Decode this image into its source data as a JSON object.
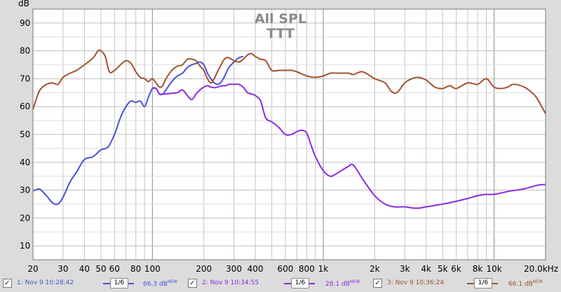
{
  "chart_data": {
    "type": "line",
    "title": "All SPL",
    "subtitle": "TTT",
    "ylabel": "dB",
    "xscale": "log",
    "xlim": [
      20,
      20000
    ],
    "ylim": [
      5,
      95
    ],
    "y_ticks": [
      10,
      20,
      30,
      40,
      50,
      60,
      70,
      80,
      90
    ],
    "x_ticks": [
      {
        "v": 20,
        "label": "20"
      },
      {
        "v": 30,
        "label": "30"
      },
      {
        "v": 40,
        "label": "40"
      },
      {
        "v": 50,
        "label": "50"
      },
      {
        "v": 60,
        "label": "60"
      },
      {
        "v": 80,
        "label": "80"
      },
      {
        "v": 100,
        "label": "100"
      },
      {
        "v": 200,
        "label": "200"
      },
      {
        "v": 300,
        "label": "300"
      },
      {
        "v": 400,
        "label": "400"
      },
      {
        "v": 600,
        "label": "600"
      },
      {
        "v": 800,
        "label": "800"
      },
      {
        "v": 1000,
        "label": "1k"
      },
      {
        "v": 2000,
        "label": "2k"
      },
      {
        "v": 3000,
        "label": "3k"
      },
      {
        "v": 4000,
        "label": "4k"
      },
      {
        "v": 5000,
        "label": "5k"
      },
      {
        "v": 6000,
        "label": "6k"
      },
      {
        "v": 8000,
        "label": "8k"
      },
      {
        "v": 10000,
        "label": "10k"
      },
      {
        "v": 20000,
        "label": "20.0kHz"
      }
    ],
    "grid": true,
    "series": [
      {
        "name": "1: Nov 9 10:28:42",
        "color": "#4a52d8",
        "smoothing": "1/6",
        "value_label": "66.3 dB",
        "x": [
          20,
          21,
          22,
          24,
          26,
          28,
          30,
          33,
          36,
          40,
          45,
          50,
          55,
          60,
          65,
          70,
          75,
          80,
          85,
          90,
          95,
          100,
          105,
          110,
          115,
          120,
          130,
          140,
          150,
          160,
          170,
          180,
          190,
          200,
          210,
          220,
          230,
          240,
          250,
          260,
          270,
          280,
          300,
          320,
          340
        ],
        "y": [
          29.8,
          30.2,
          30.3,
          28,
          25.5,
          25,
          27.5,
          33,
          36.5,
          41,
          42,
          44.5,
          45.5,
          50,
          56,
          60,
          62,
          61.5,
          62,
          60,
          63.5,
          66.5,
          66.5,
          64.5,
          64.5,
          66,
          69,
          71,
          72,
          74,
          75,
          75.5,
          76,
          75,
          72,
          70,
          68.5,
          68,
          68.5,
          70,
          72,
          74,
          76,
          77.5,
          78
        ]
      },
      {
        "name": "2: Nov 9 10:34:55",
        "color": "#8a2be2",
        "smoothing": "1/6",
        "value_label": "28.1 dB",
        "x": [
          100,
          105,
          110,
          115,
          120,
          130,
          140,
          150,
          160,
          170,
          180,
          190,
          200,
          210,
          220,
          230,
          240,
          250,
          260,
          270,
          280,
          300,
          320,
          340,
          360,
          380,
          400,
          430,
          460,
          500,
          550,
          600,
          650,
          700,
          750,
          800,
          850,
          900,
          1000,
          1100,
          1200,
          1400,
          1500,
          1700,
          2000,
          2300,
          2600,
          3000,
          3500,
          4000,
          5000,
          6000,
          7000,
          8000,
          9000,
          10000,
          12000,
          15000,
          18000,
          20000
        ],
        "y": [
          66.5,
          66.5,
          64.5,
          64.5,
          64.5,
          64.8,
          65,
          66,
          64,
          62.5,
          64.5,
          66,
          67,
          67.5,
          67,
          66.8,
          67,
          67.3,
          67.5,
          67.5,
          68,
          68,
          68,
          67,
          65,
          64.5,
          64,
          62,
          56,
          54.5,
          52.5,
          50,
          50,
          51,
          51.5,
          50.5,
          46,
          42,
          37,
          35,
          36,
          38.5,
          39,
          34,
          28,
          25,
          24,
          24,
          23.5,
          24,
          25,
          26,
          27,
          28,
          28.5,
          28.5,
          29.5,
          30.5,
          31.8,
          32
        ]
      },
      {
        "name": "3: Nov 9 10:36:24",
        "color": "#a0522d",
        "smoothing": "1/6",
        "value_label": "66.1 dB",
        "x": [
          20,
          21,
          22,
          24,
          26,
          28,
          30,
          33,
          36,
          40,
          45,
          48,
          50,
          53,
          56,
          60,
          65,
          70,
          75,
          80,
          85,
          90,
          95,
          100,
          105,
          110,
          115,
          120,
          130,
          140,
          150,
          160,
          170,
          180,
          190,
          200,
          210,
          220,
          230,
          240,
          250,
          260,
          270,
          280,
          300,
          320,
          340,
          360,
          380,
          400,
          430,
          460,
          500,
          550,
          600,
          650,
          700,
          800,
          900,
          1000,
          1100,
          1200,
          1400,
          1500,
          1700,
          2000,
          2300,
          2500,
          2700,
          3000,
          3300,
          3600,
          4000,
          4500,
          5000,
          5500,
          6000,
          7000,
          8000,
          9000,
          10000,
          11000,
          12000,
          13000,
          15000,
          17000,
          18000,
          20000
        ],
        "y": [
          59,
          63,
          66,
          68,
          68.5,
          68,
          70.5,
          72,
          73,
          75,
          77.5,
          80,
          80,
          78,
          72.5,
          73,
          75,
          76.5,
          75.5,
          72.5,
          70.5,
          70,
          69,
          70,
          68.5,
          67,
          67.5,
          70,
          73,
          74.5,
          75,
          77,
          77,
          76.5,
          74.5,
          73,
          70,
          68.5,
          70,
          72.5,
          74.5,
          76.5,
          77.5,
          77.5,
          76.5,
          76,
          77,
          78.5,
          79,
          78,
          77,
          76.5,
          73,
          73,
          73,
          73,
          72.5,
          71,
          70.5,
          71,
          72,
          72,
          72,
          71.5,
          72.5,
          70,
          68.5,
          65.5,
          65,
          68.5,
          70,
          70.5,
          69.5,
          67,
          66.5,
          67.5,
          66.5,
          68.5,
          68,
          70,
          67,
          66.5,
          67,
          68,
          67,
          64.5,
          62.5,
          57.5
        ]
      }
    ]
  },
  "legend": [
    {
      "label": "1: Nov 9 10:28:42",
      "smoothing": "1/6",
      "value": "66.3 dB",
      "badge": "NEW",
      "color": "#4a52d8",
      "checked": true
    },
    {
      "label": "2: Nov 9 10:34:55",
      "smoothing": "1/6",
      "value": "28.1 dB",
      "badge": "NEW",
      "color": "#8a2be2",
      "checked": true
    },
    {
      "label": "3: Nov 9 10:36:24",
      "smoothing": "1/6",
      "value": "66.1 dB",
      "badge": "NEW",
      "color": "#a0522d",
      "checked": true
    }
  ]
}
